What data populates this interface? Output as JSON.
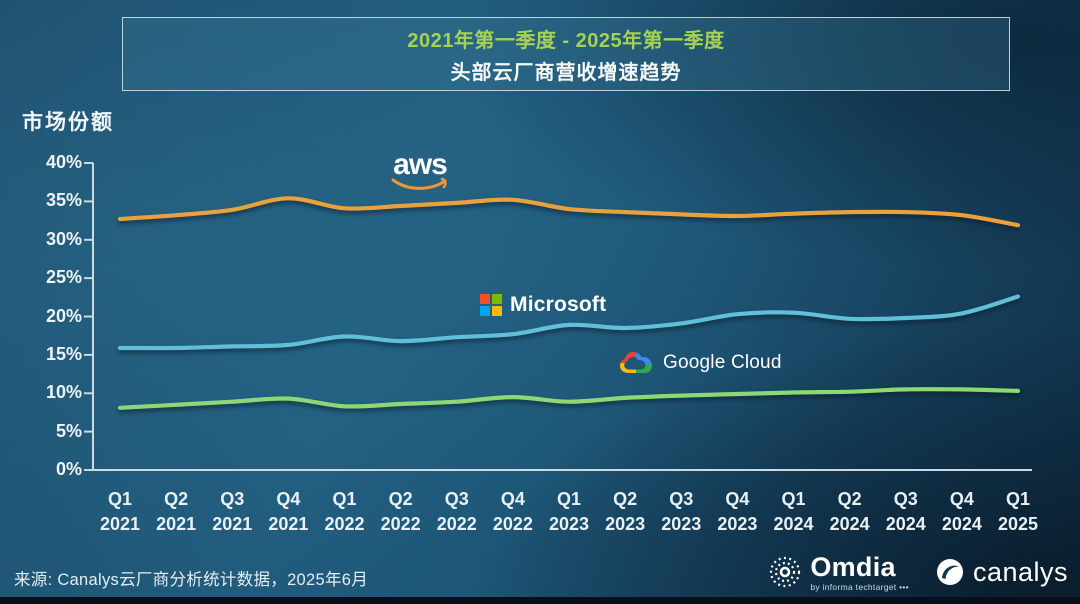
{
  "title": {
    "period": "2021年第一季度 - 2025年第一季度",
    "heading": "头部云厂商营收增速趋势"
  },
  "axis_label": "市场份额",
  "source": "来源: Canalys云厂商分析统计数据，2025年6月",
  "logos": {
    "aws": "aws",
    "microsoft": "Microsoft",
    "google_cloud": "Google Cloud",
    "omdia": "Omdia",
    "omdia_sub": "by informa techtarget •••",
    "canalys": "canalys"
  },
  "colors": {
    "title_period_text": "#a6d252",
    "aws_line": "#E9A23B",
    "microsoft_line": "#62BFD9",
    "google_line": "#8CD874",
    "axis": "#c9dae2",
    "ms_square_red": "#F25022",
    "ms_square_green": "#7FBA00",
    "ms_square_blue": "#00A4EF",
    "ms_square_yellow": "#FFB900",
    "aws_smile_orange": "#F0982F"
  },
  "chart_data": {
    "type": "line",
    "title": "头部云厂商营收增速趋势 (2021年第一季度 - 2025年第一季度)",
    "ylabel": "市场份额",
    "xlabel": "",
    "ylim": [
      0,
      40
    ],
    "grid": false,
    "legend_position": "inline-labels",
    "x": [
      "Q1 2021",
      "Q2 2021",
      "Q3 2021",
      "Q4 2021",
      "Q1 2022",
      "Q2 2022",
      "Q3 2022",
      "Q4 2022",
      "Q1 2023",
      "Q2 2023",
      "Q3 2023",
      "Q4 2023",
      "Q1 2024",
      "Q2 2024",
      "Q3 2024",
      "Q4 2024",
      "Q1 2025"
    ],
    "yticks": [
      {
        "label": "40%",
        "v": 40
      },
      {
        "label": "35%",
        "v": 35
      },
      {
        "label": "30%",
        "v": 30
      },
      {
        "label": "25%",
        "v": 25
      },
      {
        "label": "20%",
        "v": 20
      },
      {
        "label": "15%",
        "v": 15
      },
      {
        "label": "10%",
        "v": 10
      },
      {
        "label": "5%",
        "v": 5
      },
      {
        "label": "0%",
        "v": 0
      }
    ],
    "series": [
      {
        "id": "aws",
        "name": "AWS",
        "color": "#E9A23B",
        "values": [
          32.7,
          33.2,
          33.9,
          35.4,
          34.1,
          34.4,
          34.8,
          35.2,
          34.0,
          33.6,
          33.3,
          33.1,
          33.4,
          33.6,
          33.6,
          33.2,
          31.9
        ]
      },
      {
        "id": "microsoft",
        "name": "Microsoft",
        "color": "#62BFD9",
        "values": [
          15.9,
          15.9,
          16.1,
          16.3,
          17.4,
          16.8,
          17.3,
          17.7,
          18.9,
          18.5,
          19.1,
          20.3,
          20.5,
          19.7,
          19.8,
          20.4,
          22.6
        ]
      },
      {
        "id": "google-cloud",
        "name": "Google Cloud",
        "color": "#8CD874",
        "values": [
          8.1,
          8.5,
          8.9,
          9.3,
          8.3,
          8.6,
          8.9,
          9.5,
          8.9,
          9.4,
          9.7,
          9.9,
          10.1,
          10.2,
          10.5,
          10.5,
          10.3
        ]
      }
    ]
  }
}
